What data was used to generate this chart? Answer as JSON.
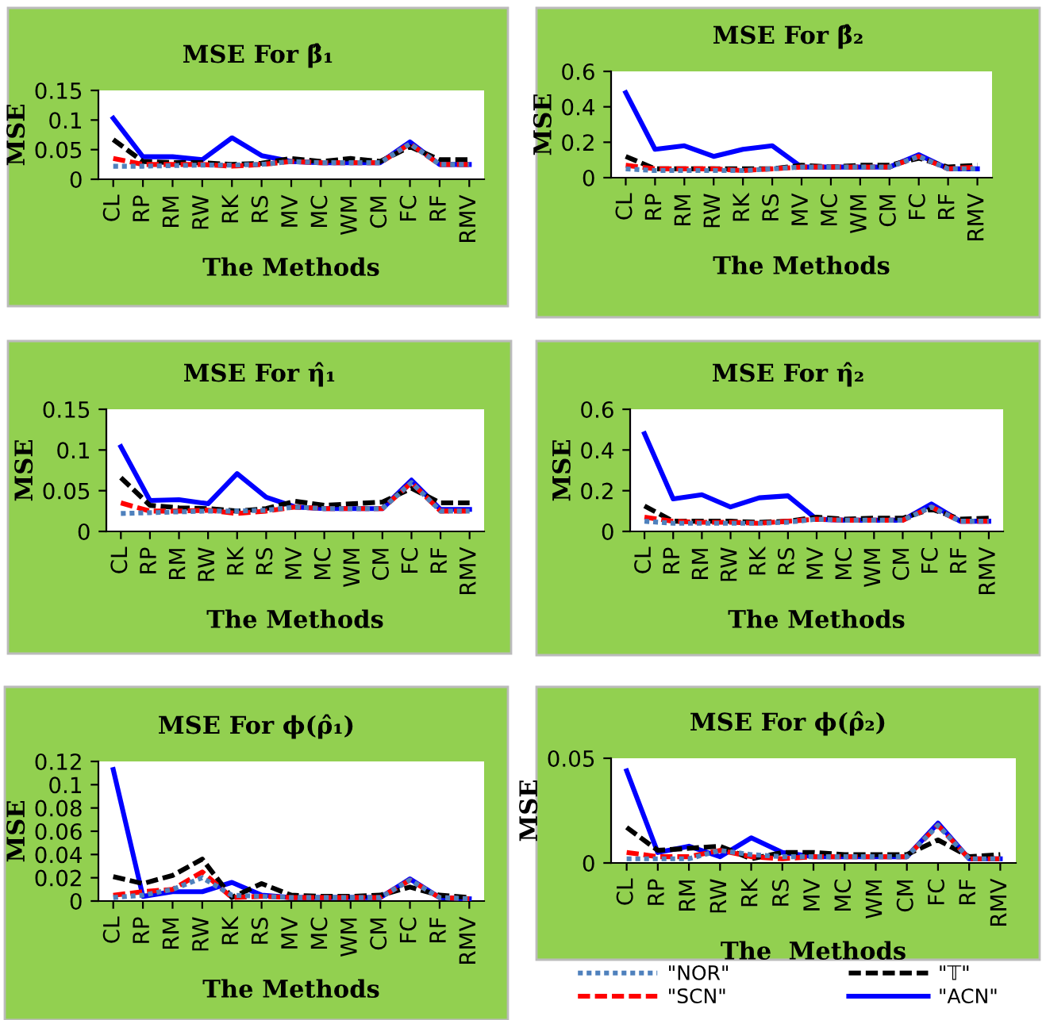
{
  "chart_data": [
    {
      "type": "line",
      "title": "MSE For β̂₁",
      "xlabel": "The Methods",
      "ylabel": "MSE",
      "categories": [
        "CL",
        "RP",
        "RM",
        "RW",
        "RK",
        "RS",
        "MV",
        "MC",
        "WM",
        "CM",
        "FC",
        "RF",
        "RMV"
      ],
      "ylim": [
        0,
        0.15
      ],
      "yticks": [
        0,
        0.05,
        0.1,
        0.15
      ],
      "grid": false,
      "legend": false,
      "series": [
        {
          "color": "#4f81bd",
          "line_style": "dotted",
          "values": [
            0.022,
            0.022,
            0.023,
            0.024,
            0.024,
            0.025,
            0.03,
            0.028,
            0.028,
            0.028,
            0.06,
            0.025,
            0.025
          ]
        },
        {
          "color": "#ff0000",
          "line_style": "dashed",
          "values": [
            0.035,
            0.025,
            0.025,
            0.025,
            0.022,
            0.025,
            0.03,
            0.028,
            0.028,
            0.028,
            0.06,
            0.025,
            0.025
          ]
        },
        {
          "color": "#000000",
          "line_style": "dashed",
          "values": [
            0.067,
            0.03,
            0.028,
            0.028,
            0.025,
            0.027,
            0.035,
            0.03,
            0.035,
            0.03,
            0.055,
            0.033,
            0.033
          ]
        },
        {
          "color": "#0000ff",
          "line_style": "solid",
          "values": [
            0.103,
            0.038,
            0.038,
            0.033,
            0.07,
            0.04,
            0.03,
            0.028,
            0.028,
            0.028,
            0.063,
            0.025,
            0.025
          ]
        }
      ]
    },
    {
      "type": "line",
      "title": "MSE For β̂₂",
      "xlabel": "The Methods",
      "ylabel": "MSE",
      "categories": [
        "CL",
        "RP",
        "RM",
        "RW",
        "RK",
        "RS",
        "MV",
        "MC",
        "WM",
        "CM",
        "FC",
        "RF",
        "RMV"
      ],
      "ylim": [
        0,
        0.6
      ],
      "yticks": [
        0,
        0.2,
        0.4,
        0.6
      ],
      "grid": false,
      "legend": false,
      "series": [
        {
          "color": "#4f81bd",
          "line_style": "dotted",
          "values": [
            0.05,
            0.04,
            0.04,
            0.04,
            0.04,
            0.05,
            0.06,
            0.06,
            0.06,
            0.06,
            0.12,
            0.05,
            0.05
          ]
        },
        {
          "color": "#ff0000",
          "line_style": "dashed",
          "values": [
            0.07,
            0.05,
            0.05,
            0.05,
            0.04,
            0.05,
            0.06,
            0.06,
            0.06,
            0.06,
            0.12,
            0.05,
            0.06
          ]
        },
        {
          "color": "#000000",
          "line_style": "dashed",
          "values": [
            0.12,
            0.05,
            0.05,
            0.05,
            0.05,
            0.05,
            0.07,
            0.06,
            0.07,
            0.07,
            0.11,
            0.06,
            0.07
          ]
        },
        {
          "color": "#0000ff",
          "line_style": "solid",
          "values": [
            0.48,
            0.16,
            0.18,
            0.12,
            0.16,
            0.18,
            0.06,
            0.06,
            0.06,
            0.06,
            0.13,
            0.05,
            0.05
          ]
        }
      ]
    },
    {
      "type": "line",
      "title": "MSE For η̂₁",
      "xlabel": "The Methods",
      "ylabel": "MSE",
      "categories": [
        "CL",
        "RP",
        "RM",
        "RW",
        "RK",
        "RS",
        "MV",
        "MC",
        "WM",
        "CM",
        "FC",
        "RF",
        "RMV"
      ],
      "ylim": [
        0,
        0.15
      ],
      "yticks": [
        0,
        0.05,
        0.1,
        0.15
      ],
      "grid": false,
      "legend": false,
      "series": [
        {
          "color": "#4f81bd",
          "line_style": "dotted",
          "values": [
            0.022,
            0.023,
            0.024,
            0.025,
            0.025,
            0.026,
            0.03,
            0.028,
            0.028,
            0.028,
            0.06,
            0.025,
            0.025
          ]
        },
        {
          "color": "#ff0000",
          "line_style": "dashed",
          "values": [
            0.035,
            0.025,
            0.025,
            0.026,
            0.022,
            0.025,
            0.03,
            0.028,
            0.028,
            0.028,
            0.06,
            0.025,
            0.025
          ]
        },
        {
          "color": "#000000",
          "line_style": "dashed",
          "values": [
            0.066,
            0.032,
            0.029,
            0.028,
            0.025,
            0.028,
            0.037,
            0.032,
            0.034,
            0.036,
            0.053,
            0.035,
            0.035
          ]
        },
        {
          "color": "#0000ff",
          "line_style": "solid",
          "values": [
            0.104,
            0.038,
            0.039,
            0.034,
            0.071,
            0.042,
            0.03,
            0.028,
            0.028,
            0.028,
            0.063,
            0.027,
            0.027
          ]
        }
      ]
    },
    {
      "type": "line",
      "title": "MSE For η̂₂",
      "xlabel": "The Methods",
      "ylabel": "MSE",
      "categories": [
        "CL",
        "RP",
        "RM",
        "RW",
        "RK",
        "RS",
        "MV",
        "MC",
        "WM",
        "CM",
        "FC",
        "RF",
        "RMV"
      ],
      "ylim": [
        0,
        0.6
      ],
      "yticks": [
        0,
        0.2,
        0.4,
        0.6
      ],
      "grid": false,
      "legend": false,
      "series": [
        {
          "color": "#4f81bd",
          "line_style": "dotted",
          "values": [
            0.05,
            0.04,
            0.04,
            0.04,
            0.04,
            0.045,
            0.06,
            0.055,
            0.055,
            0.055,
            0.12,
            0.05,
            0.05
          ]
        },
        {
          "color": "#ff0000",
          "line_style": "dashed",
          "values": [
            0.07,
            0.05,
            0.045,
            0.045,
            0.04,
            0.05,
            0.06,
            0.055,
            0.055,
            0.055,
            0.12,
            0.05,
            0.05
          ]
        },
        {
          "color": "#000000",
          "line_style": "dashed",
          "values": [
            0.125,
            0.05,
            0.05,
            0.05,
            0.045,
            0.05,
            0.07,
            0.06,
            0.065,
            0.065,
            0.11,
            0.06,
            0.065
          ]
        },
        {
          "color": "#0000ff",
          "line_style": "solid",
          "values": [
            0.48,
            0.16,
            0.18,
            0.12,
            0.165,
            0.175,
            0.06,
            0.055,
            0.055,
            0.055,
            0.135,
            0.05,
            0.05
          ]
        }
      ]
    },
    {
      "type": "line",
      "title": "MSE For ϕ(ρ̂₁)",
      "xlabel": "The Methods",
      "ylabel": "MSE",
      "categories": [
        "CL",
        "RP",
        "RM",
        "RW",
        "RK",
        "RS",
        "MV",
        "MC",
        "WM",
        "CM",
        "FC",
        "RF",
        "RMV"
      ],
      "ylim": [
        0,
        0.12
      ],
      "yticks": [
        0,
        0.02,
        0.04,
        0.06,
        0.08,
        0.1,
        0.12
      ],
      "grid": false,
      "legend": false,
      "series": [
        {
          "color": "#4f81bd",
          "line_style": "dotted",
          "values": [
            0.003,
            0.005,
            0.01,
            0.02,
            0.005,
            0.004,
            0.003,
            0.003,
            0.003,
            0.003,
            0.018,
            0.003,
            0.002
          ]
        },
        {
          "color": "#ff0000",
          "line_style": "dashed",
          "values": [
            0.005,
            0.008,
            0.01,
            0.025,
            0.003,
            0.004,
            0.003,
            0.003,
            0.003,
            0.003,
            0.018,
            0.003,
            0.002
          ]
        },
        {
          "color": "#000000",
          "line_style": "dashed",
          "values": [
            0.021,
            0.015,
            0.022,
            0.036,
            0.003,
            0.015,
            0.005,
            0.004,
            0.004,
            0.005,
            0.012,
            0.005,
            0.003
          ]
        },
        {
          "color": "#0000ff",
          "line_style": "solid",
          "values": [
            0.113,
            0.004,
            0.008,
            0.008,
            0.016,
            0.005,
            0.003,
            0.003,
            0.003,
            0.003,
            0.019,
            0.003,
            0.002
          ]
        }
      ]
    },
    {
      "type": "line",
      "title": "MSE For ϕ(ρ̂₂)",
      "xlabel": "The  Methods",
      "ylabel": "MSE",
      "categories": [
        "CL",
        "RP",
        "RM",
        "RW",
        "RK",
        "RS",
        "MV",
        "MC",
        "WM",
        "CM",
        "FC",
        "RF",
        "RMV"
      ],
      "ylim": [
        0,
        0.05
      ],
      "yticks": [
        0,
        0.05
      ],
      "grid": false,
      "legend": "bottom",
      "series": [
        {
          "name": "\"NOR\"",
          "color": "#4f81bd",
          "line_style": "dotted",
          "values": [
            0.002,
            0.002,
            0.002,
            0.006,
            0.004,
            0.003,
            0.003,
            0.003,
            0.003,
            0.003,
            0.018,
            0.002,
            0.002
          ]
        },
        {
          "name": "\"SCN\"",
          "color": "#ff0000",
          "line_style": "dashed",
          "values": [
            0.005,
            0.003,
            0.003,
            0.006,
            0.003,
            0.002,
            0.003,
            0.003,
            0.003,
            0.003,
            0.018,
            0.002,
            0.002
          ]
        },
        {
          "name": "\"𝕋\"",
          "color": "#000000",
          "line_style": "dashed",
          "values": [
            0.017,
            0.006,
            0.007,
            0.008,
            0.002,
            0.005,
            0.005,
            0.004,
            0.004,
            0.004,
            0.011,
            0.003,
            0.004
          ]
        },
        {
          "name": "\"ACN\"",
          "color": "#0000ff",
          "line_style": "solid",
          "values": [
            0.044,
            0.005,
            0.008,
            0.003,
            0.012,
            0.005,
            0.003,
            0.003,
            0.003,
            0.003,
            0.019,
            0.002,
            0.002
          ]
        }
      ]
    }
  ]
}
